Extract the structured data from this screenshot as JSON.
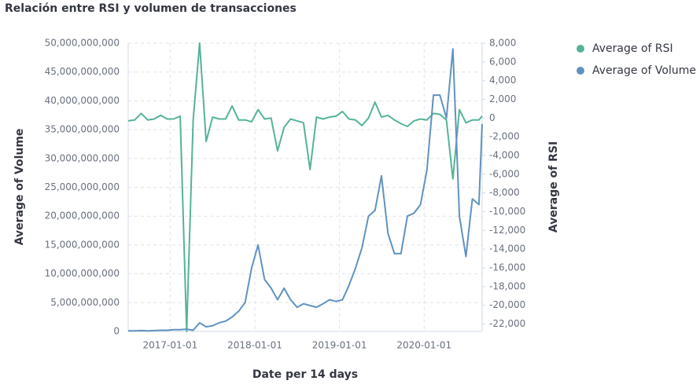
{
  "chart_data": {
    "type": "line",
    "title": "Relación entre RSI y volumen de transacciones",
    "x_label": "Date per 14 days",
    "y_label": "Average of Volume",
    "y2_label": "Average of RSI",
    "x": [
      "2016-07-04",
      "2016-08-01",
      "2016-08-29",
      "2016-09-26",
      "2016-10-24",
      "2016-11-21",
      "2016-12-19",
      "2017-01-16",
      "2017-02-13",
      "2017-03-13",
      "2017-04-10",
      "2017-05-08",
      "2017-06-05",
      "2017-07-03",
      "2017-07-31",
      "2017-08-28",
      "2017-09-25",
      "2017-10-23",
      "2017-11-20",
      "2017-12-18",
      "2018-01-15",
      "2018-02-12",
      "2018-03-12",
      "2018-04-09",
      "2018-05-07",
      "2018-06-04",
      "2018-07-02",
      "2018-07-30",
      "2018-08-27",
      "2018-09-24",
      "2018-10-22",
      "2018-11-19",
      "2018-12-17",
      "2019-01-14",
      "2019-02-11",
      "2019-03-11",
      "2019-04-08",
      "2019-05-06",
      "2019-06-03",
      "2019-07-01",
      "2019-07-29",
      "2019-08-26",
      "2019-09-23",
      "2019-10-21",
      "2019-11-18",
      "2019-12-16",
      "2020-01-13",
      "2020-02-10",
      "2020-03-09",
      "2020-04-06",
      "2020-05-04",
      "2020-06-01",
      "2020-06-29",
      "2020-07-27",
      "2020-08-24",
      "2020-09-07"
    ],
    "xlim": [
      "2016-07-04",
      "2020-09-07"
    ],
    "xticks": [
      "2017-01-01",
      "2018-01-01",
      "2019-01-01",
      "2020-01-01"
    ],
    "series": [
      {
        "name": "Average of RSI",
        "color": "#54b399",
        "axis": "y2",
        "values": [
          -300,
          -200,
          500,
          -200,
          -100,
          300,
          -100,
          -100,
          200,
          -22800,
          -200,
          8000,
          -2500,
          100,
          -100,
          -100,
          1300,
          -200,
          -200,
          -400,
          900,
          -100,
          0,
          -3500,
          -1000,
          -100,
          -300,
          -500,
          -5500,
          100,
          -100,
          100,
          200,
          700,
          -100,
          -200,
          -800,
          0,
          1700,
          100,
          300,
          -200,
          -600,
          -900,
          -300,
          -100,
          -200,
          500,
          400,
          -200,
          -6500,
          900,
          -500,
          -200,
          -200,
          200
        ]
      },
      {
        "name": "Average of Volume",
        "color": "#6092c0",
        "values": [
          100000000,
          100000000,
          150000000,
          100000000,
          150000000,
          200000000,
          200000000,
          300000000,
          300000000,
          400000000,
          200000000,
          1500000000,
          800000000,
          1000000000,
          1500000000,
          1800000000,
          2500000000,
          3500000000,
          5000000000,
          11000000000,
          15000000000,
          9000000000,
          7500000000,
          5500000000,
          7500000000,
          5500000000,
          4200000000,
          4800000000,
          4500000000,
          4200000000,
          4800000000,
          5500000000,
          5200000000,
          5500000000,
          8000000000,
          11000000000,
          14500000000,
          20000000000,
          21000000000,
          27000000000,
          17000000000,
          13500000000,
          13500000000,
          20000000000,
          20500000000,
          22000000000,
          28000000000,
          41000000000,
          41000000000,
          37000000000,
          49000000000,
          20000000000,
          13000000000,
          23000000000,
          22000000000,
          36000000000
        ]
      }
    ],
    "ylim": [
      0,
      50000000000
    ],
    "yticks": [
      0,
      {
        "value": 5000000000,
        "label": "5,000,000,000"
      },
      {
        "value": 10000000000,
        "label": "10,000,000,000"
      },
      {
        "value": 15000000000,
        "label": "15,000,000,000"
      },
      {
        "value": 20000000000,
        "label": "20,000,000,000"
      },
      {
        "value": 25000000000,
        "label": "25,000,000,000"
      },
      {
        "value": 30000000000,
        "label": "30,000,000,000"
      },
      {
        "value": 35000000000,
        "label": "35,000,000,000"
      },
      {
        "value": 40000000000,
        "label": "40,000,000,000"
      },
      {
        "value": 45000000000,
        "label": "45,000,000,000"
      },
      {
        "value": 50000000000,
        "label": "50,000,000,000"
      }
    ],
    "y2lim": [
      -22800,
      8000
    ],
    "y2ticks": [
      {
        "value": 8000,
        "label": "8,000"
      },
      {
        "value": 6000,
        "label": "6,000"
      },
      {
        "value": 4000,
        "label": "4,000"
      },
      {
        "value": 2000,
        "label": "2,000"
      },
      0,
      {
        "value": -2000,
        "label": "-2,000"
      },
      {
        "value": -4000,
        "label": "-4,000"
      },
      {
        "value": -6000,
        "label": "-6,000"
      },
      {
        "value": -8000,
        "label": "-8,000"
      },
      {
        "value": -10000,
        "label": "-10,000"
      },
      {
        "value": -12000,
        "label": "-12,000"
      },
      {
        "value": -14000,
        "label": "-14,000"
      },
      {
        "value": -16000,
        "label": "-16,000"
      },
      {
        "value": -18000,
        "label": "-18,000"
      },
      {
        "value": -20000,
        "label": "-20,000"
      },
      {
        "value": -22000,
        "label": "-22,000"
      }
    ],
    "grid": true,
    "legend": "right"
  }
}
